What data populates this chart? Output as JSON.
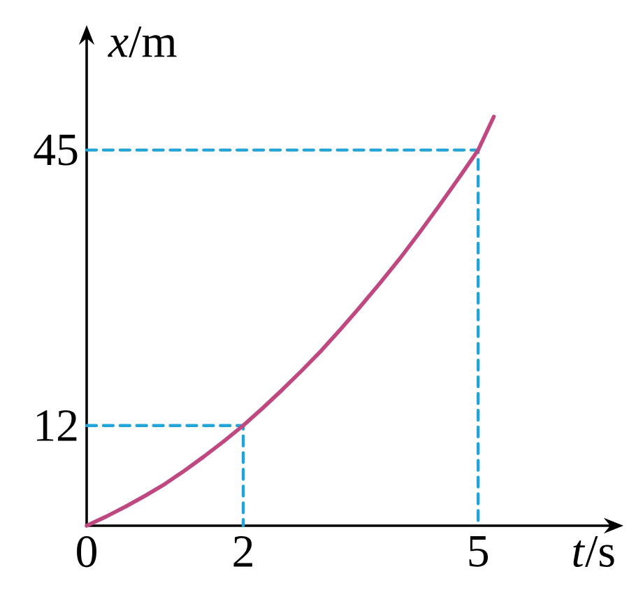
{
  "chart_data": {
    "type": "line",
    "xlabel": "*t*/s",
    "ylabel": "*x*/m",
    "xlim": [
      0,
      6.7
    ],
    "ylim": [
      0,
      58.5
    ],
    "xticks": [
      0,
      2,
      5
    ],
    "yticks": [
      12,
      45
    ],
    "marker": "none",
    "series": [
      {
        "color": "#23a4d8",
        "line_style": "dashed",
        "x": [
          0,
          2,
          2
        ],
        "values": [
          12,
          12,
          0
        ]
      },
      {
        "color": "#23a4d8",
        "line_style": "dashed",
        "x": [
          0,
          5,
          5
        ],
        "values": [
          45,
          45,
          0
        ]
      },
      {
        "color": "#c04880",
        "line_style": "solid",
        "x": [
          0,
          0.25,
          0.5,
          0.75,
          1,
          1.25,
          1.5,
          1.75,
          2,
          2.25,
          2.5,
          2.75,
          3,
          3.25,
          3.5,
          3.75,
          4,
          4.25,
          4.5,
          4.75,
          5,
          5.2
        ],
        "values": [
          0,
          1.1,
          2.3,
          3.6,
          5,
          6.6,
          8.3,
          10.1,
          12,
          14.1,
          16.3,
          18.6,
          21,
          23.6,
          26.3,
          29.1,
          32,
          35.1,
          38.3,
          41.6,
          45,
          49
        ]
      }
    ]
  }
}
